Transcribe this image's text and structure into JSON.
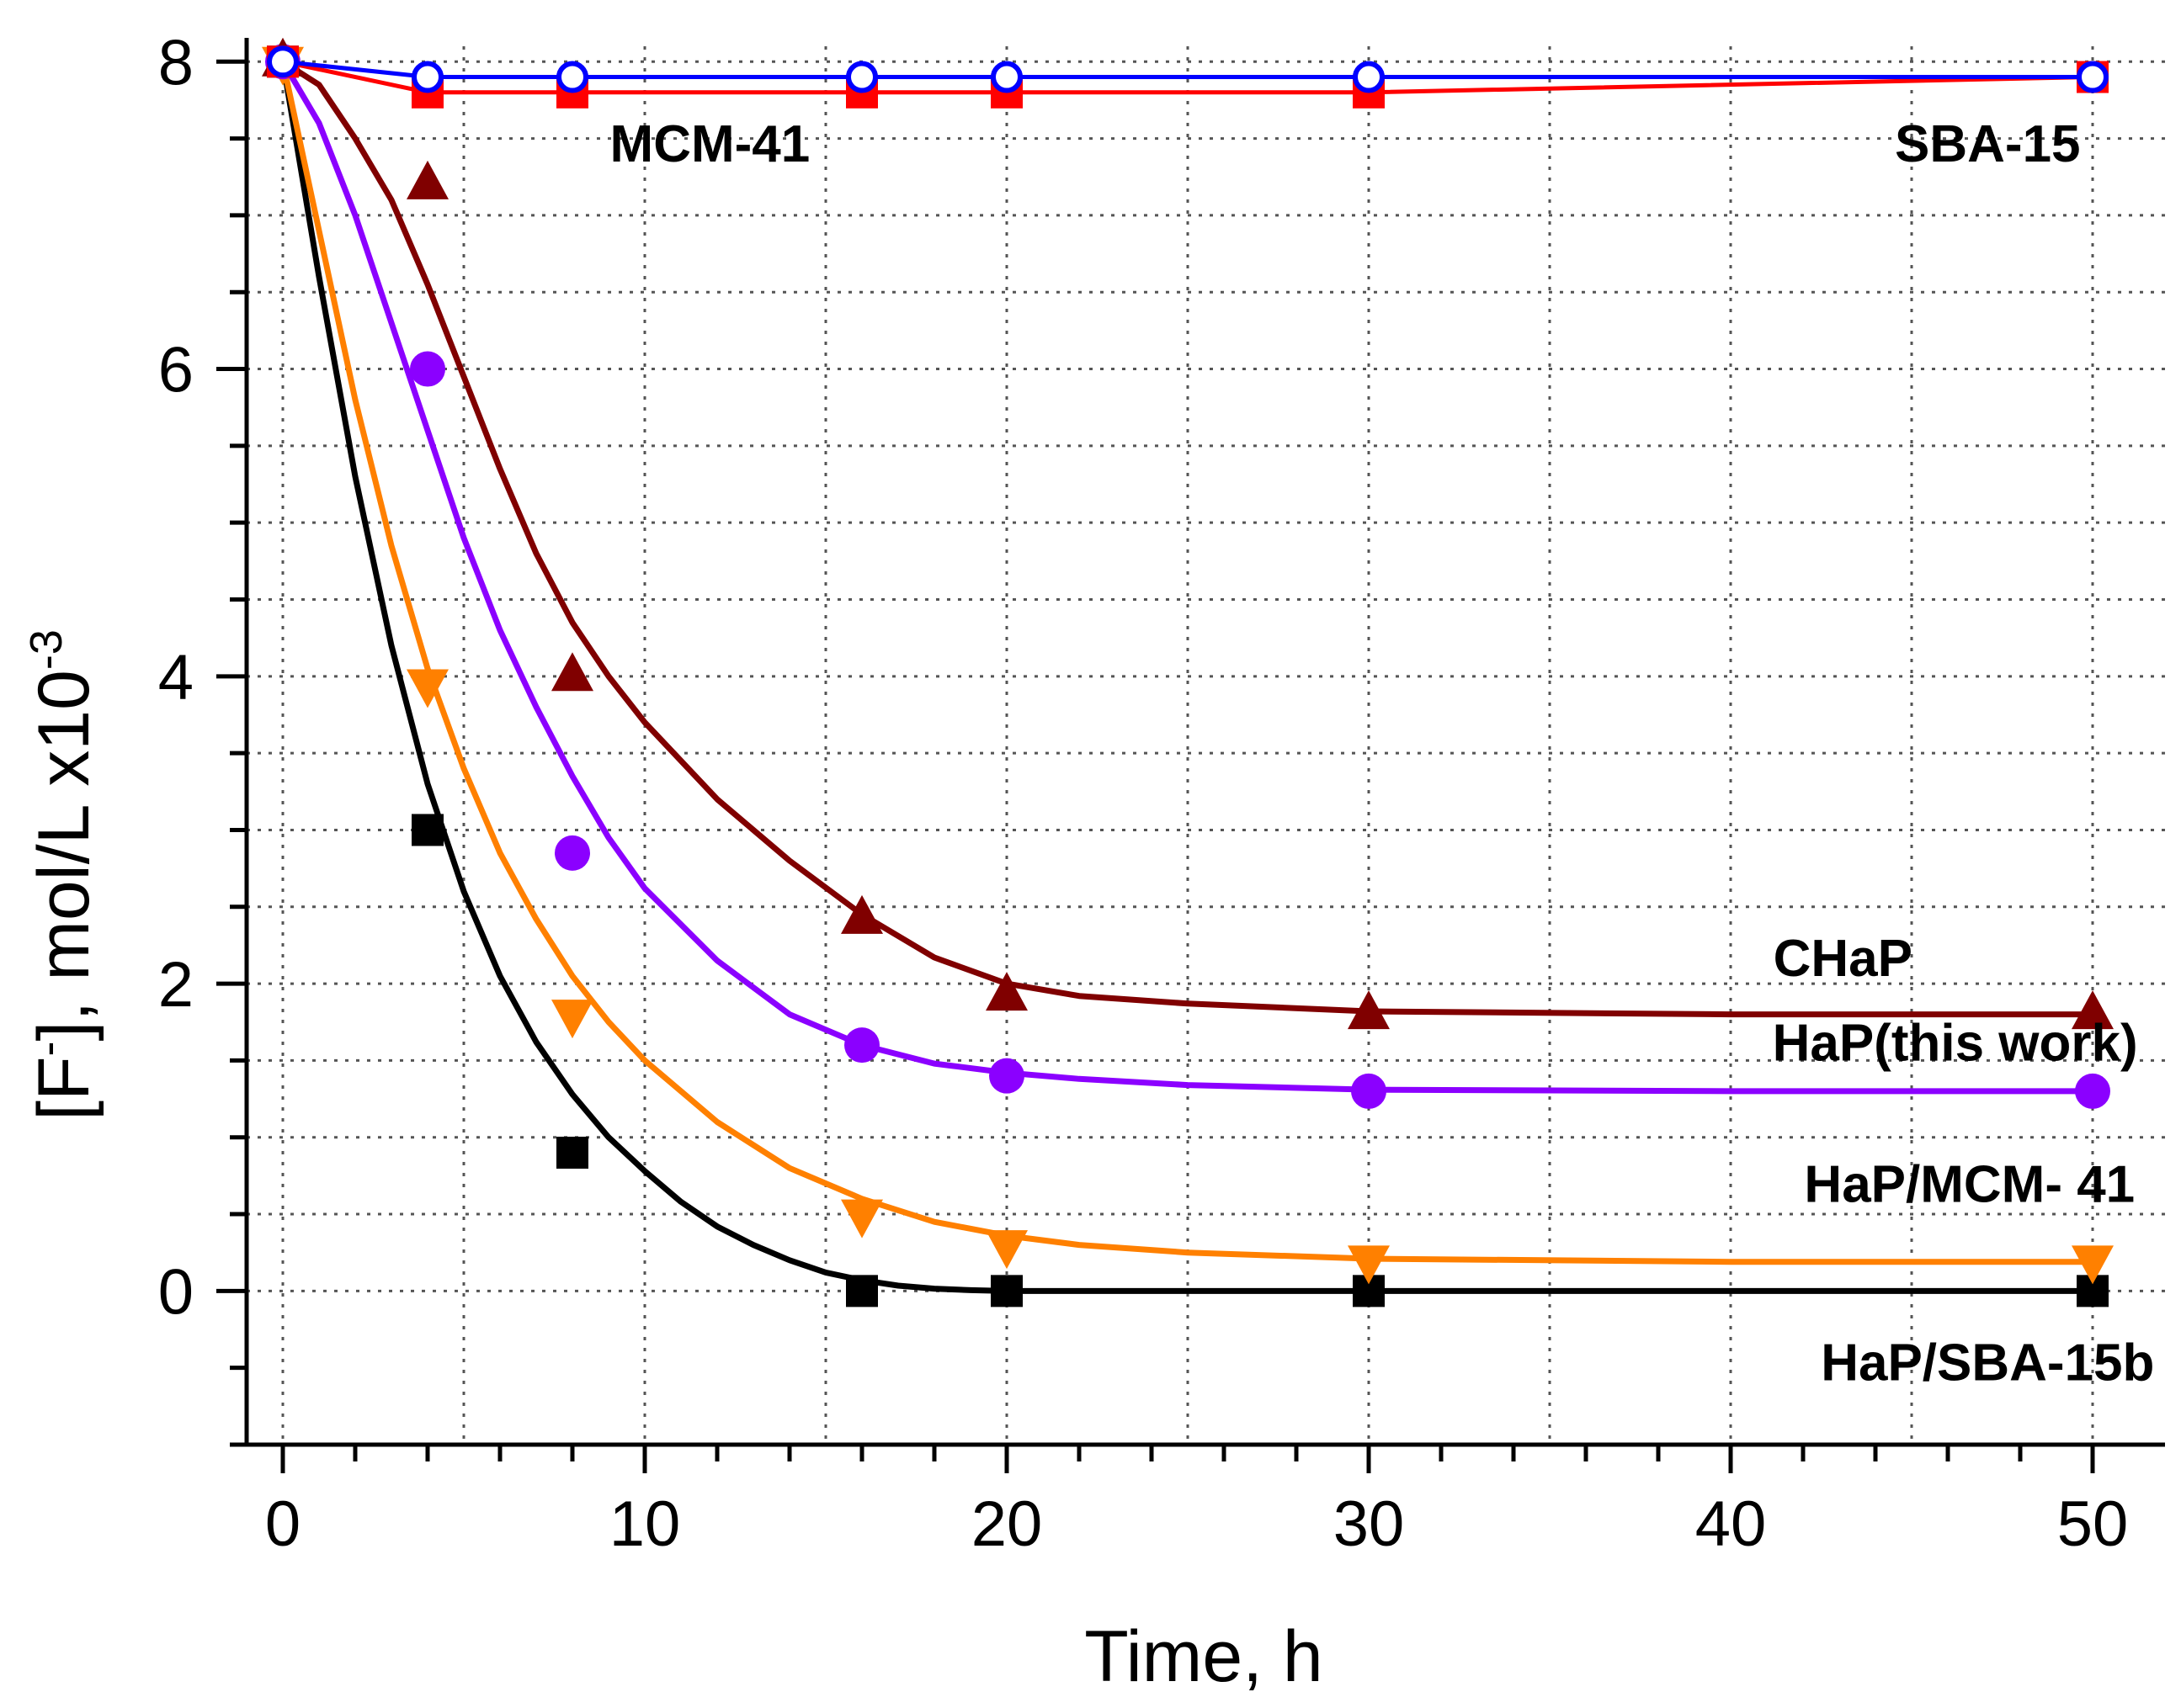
{
  "chart_data": {
    "type": "scatter",
    "title": "",
    "xlabel": "Time, h",
    "ylabel_parts": {
      "prefix": "[F",
      "sup_charge": "-",
      "middle": "], mol/L x10",
      "sup_exp": "-3"
    },
    "xlim": [
      -1,
      52
    ],
    "ylim": [
      -1,
      8.1
    ],
    "x_ticks": [
      0,
      10,
      20,
      30,
      40,
      50
    ],
    "x_tick_labels": [
      "0",
      "10",
      "20",
      "30",
      "40",
      "50"
    ],
    "y_ticks": [
      0,
      2,
      4,
      6,
      8
    ],
    "y_tick_labels": [
      "0",
      "2",
      "4",
      "6",
      "8"
    ],
    "grid": true,
    "series": [
      {
        "name": "SBA-15",
        "color": "#0000ff",
        "marker": "open-circle",
        "style": "line-markers",
        "x": [
          0,
          4,
          8,
          16,
          20,
          30,
          50
        ],
        "y": [
          8.0,
          7.9,
          7.9,
          7.9,
          7.9,
          7.9,
          7.9
        ]
      },
      {
        "name": "MCM-41",
        "color": "#ff0000",
        "marker": "square",
        "style": "line-markers",
        "x": [
          0,
          4,
          8,
          16,
          20,
          30,
          50
        ],
        "y": [
          8.0,
          7.8,
          7.8,
          7.8,
          7.8,
          7.8,
          7.9
        ]
      },
      {
        "name": "CHaP",
        "color": "#800000",
        "marker": "triangle-up",
        "style": "fit",
        "x": [
          0,
          4,
          8,
          16,
          20,
          30,
          50
        ],
        "y": [
          8.0,
          7.2,
          4.0,
          2.42,
          1.92,
          1.8,
          1.8
        ],
        "fit_x": [
          0,
          1,
          2,
          3,
          4,
          5,
          6,
          7,
          8,
          9,
          10,
          12,
          14,
          16,
          18,
          20,
          22,
          25,
          30,
          40,
          50
        ],
        "fit_y": [
          8.0,
          7.85,
          7.5,
          7.1,
          6.55,
          5.95,
          5.35,
          4.8,
          4.35,
          4.0,
          3.7,
          3.2,
          2.8,
          2.45,
          2.17,
          2.0,
          1.92,
          1.87,
          1.82,
          1.8,
          1.8
        ]
      },
      {
        "name": "HaP(this work)",
        "color": "#8b00ff",
        "marker": "circle",
        "style": "fit",
        "x": [
          0,
          4,
          8,
          16,
          20,
          30,
          50
        ],
        "y": [
          8.0,
          6.0,
          2.85,
          1.6,
          1.4,
          1.3,
          1.3
        ],
        "fit_x": [
          0,
          1,
          2,
          3,
          4,
          5,
          6,
          7,
          8,
          9,
          10,
          12,
          14,
          16,
          18,
          20,
          22,
          25,
          30,
          40,
          50
        ],
        "fit_y": [
          8.0,
          7.6,
          7.0,
          6.3,
          5.6,
          4.9,
          4.3,
          3.8,
          3.35,
          2.95,
          2.62,
          2.15,
          1.8,
          1.6,
          1.48,
          1.42,
          1.38,
          1.34,
          1.31,
          1.3,
          1.3
        ]
      },
      {
        "name": "HaP/MCM- 41",
        "color": "#ff8000",
        "marker": "triangle-down",
        "style": "fit",
        "x": [
          0,
          4,
          8,
          16,
          20,
          30,
          50
        ],
        "y": [
          8.0,
          3.95,
          1.8,
          0.5,
          0.3,
          0.2,
          0.2
        ],
        "fit_x": [
          0,
          1,
          2,
          3,
          4,
          5,
          6,
          7,
          8,
          9,
          10,
          12,
          14,
          16,
          18,
          20,
          22,
          25,
          30,
          40,
          50
        ],
        "fit_y": [
          8.0,
          6.9,
          5.8,
          4.85,
          4.05,
          3.4,
          2.85,
          2.42,
          2.05,
          1.75,
          1.5,
          1.1,
          0.8,
          0.6,
          0.45,
          0.36,
          0.3,
          0.25,
          0.21,
          0.19,
          0.19
        ]
      },
      {
        "name": "HaP/SBA-15b",
        "color": "#000000",
        "marker": "square",
        "style": "fit",
        "x": [
          0,
          4,
          8,
          16,
          20,
          30,
          50
        ],
        "y": [
          8.0,
          3.0,
          0.9,
          0.0,
          0.0,
          0.0,
          0.0
        ],
        "fit_x": [
          0,
          1,
          2,
          3,
          4,
          5,
          6,
          7,
          8,
          9,
          10,
          11,
          12,
          13,
          14,
          15,
          16,
          17,
          18,
          19,
          20,
          25,
          30,
          40,
          50
        ],
        "fit_y": [
          8.0,
          6.6,
          5.3,
          4.2,
          3.3,
          2.6,
          2.05,
          1.62,
          1.28,
          1.0,
          0.78,
          0.58,
          0.42,
          0.3,
          0.2,
          0.12,
          0.07,
          0.035,
          0.015,
          0.005,
          0.0,
          0.0,
          0.0,
          0.0,
          0.0
        ]
      }
    ],
    "annotations": [
      {
        "text": "MCM-41",
        "x": 11.8,
        "y": 7.35
      },
      {
        "text": "SBA-15",
        "x": 47.1,
        "y": 7.35
      },
      {
        "text": "CHaP",
        "x": 43.1,
        "y": 2.05
      },
      {
        "text": "HaP(this work)",
        "x": 46.2,
        "y": 1.5
      },
      {
        "text": "HaP/MCM- 41",
        "x": 46.6,
        "y": 0.58
      },
      {
        "text": "HaP/SBA-15b",
        "x": 47.1,
        "y": -0.58
      }
    ]
  }
}
